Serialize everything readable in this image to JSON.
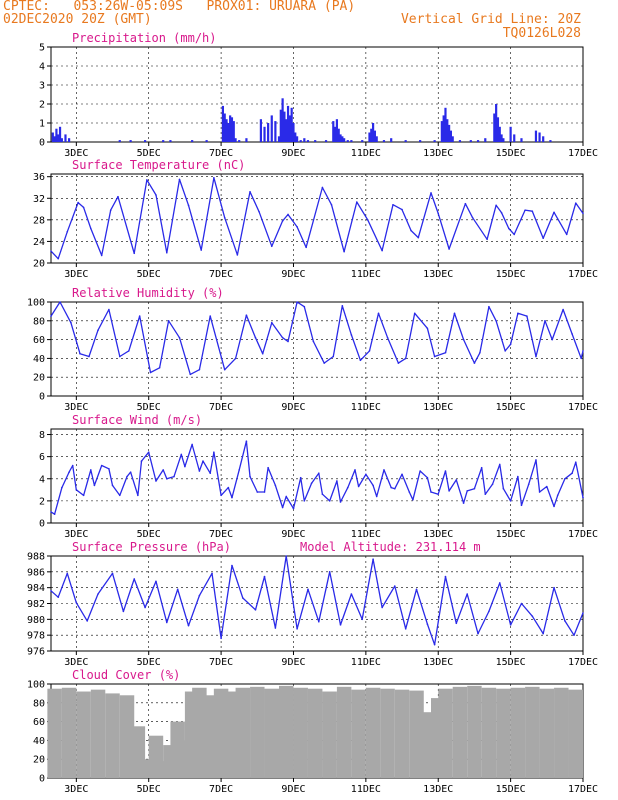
{
  "header": {
    "line1_left": "CPTEC:   053:26W-05:09S   PROX01: URUARA (PA)",
    "line2_left": "02DEC2020 20Z (GMT)",
    "line2_right": "Vertical Grid Line: 20Z",
    "line3_right": "TQ0126L028"
  },
  "colors": {
    "title": "#d8198c",
    "header": "#e8791f",
    "line": "#2a2ae8",
    "bars": "#2a2ae8",
    "cloud": "#a8a8a8"
  },
  "chart_data": [
    {
      "type": "bar",
      "title": "Precipitation (mm/h)",
      "ylim": [
        0,
        5
      ],
      "yticks": [
        0,
        1,
        2,
        3,
        4,
        5
      ],
      "x_tick_labels": [
        "3DEC",
        "5DEC",
        "7DEC",
        "9DEC",
        "11DEC",
        "13DEC",
        "15DEC",
        "17DEC"
      ],
      "x_tick_days": [
        3,
        5,
        7,
        9,
        11,
        13,
        15,
        17
      ],
      "xlim_days": [
        2.3,
        17.0
      ],
      "x_days": [
        2.35,
        2.4,
        2.45,
        2.5,
        2.55,
        2.6,
        2.7,
        2.8,
        4.2,
        4.5,
        4.9,
        5.4,
        5.6,
        6.2,
        6.6,
        7.05,
        7.1,
        7.15,
        7.2,
        7.25,
        7.3,
        7.35,
        7.4,
        7.5,
        7.7,
        8.1,
        8.2,
        8.3,
        8.4,
        8.5,
        8.6,
        8.65,
        8.7,
        8.75,
        8.8,
        8.85,
        8.9,
        8.95,
        9.0,
        9.05,
        9.1,
        9.2,
        9.3,
        9.4,
        9.6,
        9.9,
        10.1,
        10.15,
        10.2,
        10.25,
        10.3,
        10.35,
        10.4,
        10.5,
        10.6,
        10.9,
        11.1,
        11.15,
        11.2,
        11.25,
        11.3,
        11.5,
        11.7,
        12.1,
        12.5,
        12.9,
        13.1,
        13.15,
        13.2,
        13.25,
        13.3,
        13.35,
        13.4,
        13.6,
        13.9,
        14.1,
        14.3,
        14.55,
        14.6,
        14.65,
        14.7,
        14.75,
        14.8,
        15.0,
        15.1,
        15.3,
        15.7,
        15.8,
        15.9,
        16.1
      ],
      "values": [
        0.5,
        0.3,
        0.7,
        0.4,
        0.8,
        0.2,
        0.4,
        0.2,
        0.1,
        0.1,
        0.1,
        0.1,
        0.1,
        0.1,
        0.1,
        1.9,
        1.5,
        1.2,
        1.0,
        1.4,
        1.3,
        1.1,
        0.2,
        0.1,
        0.2,
        1.2,
        0.8,
        1.0,
        1.4,
        1.1,
        0.3,
        1.7,
        2.3,
        1.6,
        1.2,
        1.9,
        1.4,
        1.8,
        1.0,
        0.5,
        0.3,
        0.1,
        0.2,
        0.1,
        0.1,
        0.1,
        1.1,
        0.8,
        1.2,
        0.7,
        0.4,
        0.3,
        0.2,
        0.1,
        0.1,
        0.1,
        0.5,
        0.7,
        1.0,
        0.6,
        0.3,
        0.1,
        0.2,
        0.1,
        0.1,
        0.1,
        1.1,
        1.4,
        1.8,
        1.2,
        0.9,
        0.6,
        0.3,
        0.1,
        0.1,
        0.1,
        0.2,
        1.5,
        2.0,
        1.3,
        0.8,
        0.4,
        0.2,
        0.8,
        0.4,
        0.2,
        0.6,
        0.5,
        0.3,
        0.1
      ]
    },
    {
      "type": "line",
      "title": "Surface Temperature (nC)",
      "ylim": [
        20,
        36.5
      ],
      "yticks": [
        20,
        24,
        28,
        32,
        36
      ],
      "x_tick_labels": [
        "3DEC",
        "5DEC",
        "7DEC",
        "9DEC",
        "11DEC",
        "13DEC",
        "15DEC",
        "17DEC"
      ],
      "x_tick_days": [
        3,
        5,
        7,
        9,
        11,
        13,
        15,
        17
      ],
      "xlim_days": [
        2.3,
        17.0
      ],
      "x_days": [
        2.3,
        2.5,
        2.75,
        3.05,
        3.2,
        3.4,
        3.7,
        3.95,
        4.15,
        4.6,
        4.95,
        5.2,
        5.5,
        5.85,
        6.1,
        6.45,
        6.8,
        7.1,
        7.45,
        7.8,
        8.05,
        8.4,
        8.7,
        8.85,
        9.1,
        9.35,
        9.8,
        10.05,
        10.4,
        10.75,
        11.05,
        11.45,
        11.75,
        12.0,
        12.25,
        12.45,
        12.8,
        13.0,
        13.3,
        13.75,
        13.95,
        14.35,
        14.6,
        14.75,
        14.95,
        15.1,
        15.4,
        15.6,
        15.9,
        16.2,
        16.55,
        16.8,
        17.0
      ],
      "values": [
        22.2,
        20.8,
        25.8,
        31.2,
        30.3,
        26.4,
        21.4,
        29.8,
        32.3,
        21.8,
        35.4,
        32.6,
        21.9,
        35.5,
        30.7,
        22.4,
        35.8,
        28.4,
        21.5,
        33.2,
        29.5,
        23.1,
        27.8,
        29.0,
        26.7,
        22.9,
        34.0,
        30.8,
        22.1,
        31.3,
        28.0,
        22.3,
        30.8,
        29.9,
        26.0,
        24.7,
        33.0,
        29.2,
        22.6,
        31.0,
        28.4,
        24.4,
        30.7,
        29.3,
        26.4,
        25.3,
        29.8,
        29.6,
        24.6,
        29.4,
        25.3,
        31.1,
        29.2
      ]
    },
    {
      "type": "line",
      "title": "Relative Humidity (%)",
      "ylim": [
        0,
        100
      ],
      "yticks": [
        0,
        20,
        40,
        60,
        80,
        100
      ],
      "x_tick_labels": [
        "3DEC",
        "5DEC",
        "7DEC",
        "9DEC",
        "11DEC",
        "13DEC",
        "15DEC",
        "17DEC"
      ],
      "x_tick_days": [
        3,
        5,
        7,
        9,
        11,
        13,
        15,
        17
      ],
      "xlim_days": [
        2.3,
        17.0
      ],
      "x_days": [
        2.3,
        2.55,
        2.85,
        3.1,
        3.35,
        3.6,
        3.9,
        4.2,
        4.45,
        4.75,
        5.05,
        5.3,
        5.55,
        5.85,
        6.15,
        6.4,
        6.7,
        7.1,
        7.4,
        7.7,
        7.95,
        8.15,
        8.4,
        8.7,
        8.85,
        9.1,
        9.3,
        9.55,
        9.85,
        10.1,
        10.35,
        10.6,
        10.85,
        11.1,
        11.35,
        11.6,
        11.9,
        12.1,
        12.35,
        12.7,
        12.9,
        13.2,
        13.45,
        13.7,
        14.0,
        14.15,
        14.4,
        14.6,
        14.85,
        15.0,
        15.2,
        15.45,
        15.7,
        15.95,
        16.15,
        16.45,
        16.7,
        16.95,
        17.0
      ],
      "values": [
        85,
        100,
        78,
        45,
        42,
        70,
        92,
        42,
        48,
        85,
        25,
        30,
        80,
        62,
        23,
        28,
        85,
        28,
        40,
        86,
        62,
        45,
        78,
        62,
        58,
        100,
        95,
        58,
        35,
        42,
        96,
        65,
        38,
        48,
        88,
        62,
        35,
        40,
        88,
        72,
        42,
        46,
        88,
        60,
        35,
        46,
        95,
        80,
        48,
        55,
        88,
        85,
        42,
        80,
        60,
        92,
        66,
        40,
        48
      ]
    },
    {
      "type": "line",
      "title": "Surface Wind (m/s)",
      "ylim": [
        0,
        8.5
      ],
      "yticks": [
        0,
        2,
        4,
        6,
        8
      ],
      "x_tick_labels": [
        "3DEC",
        "5DEC",
        "7DEC",
        "9DEC",
        "11DEC",
        "13DEC",
        "15DEC",
        "17DEC"
      ],
      "x_tick_days": [
        3,
        5,
        7,
        9,
        11,
        13,
        15,
        17
      ],
      "xlim_days": [
        2.3,
        17.0
      ],
      "x_days": [
        2.3,
        2.4,
        2.6,
        2.8,
        2.9,
        3.0,
        3.2,
        3.4,
        3.5,
        3.7,
        3.9,
        4.0,
        4.2,
        4.4,
        4.5,
        4.7,
        4.8,
        5.0,
        5.2,
        5.4,
        5.5,
        5.7,
        5.9,
        6.0,
        6.2,
        6.4,
        6.5,
        6.7,
        6.8,
        7.0,
        7.2,
        7.3,
        7.5,
        7.7,
        7.8,
        8.0,
        8.2,
        8.3,
        8.5,
        8.7,
        8.8,
        9.0,
        9.2,
        9.3,
        9.5,
        9.7,
        9.8,
        10.0,
        10.2,
        10.3,
        10.5,
        10.7,
        10.8,
        11.0,
        11.2,
        11.3,
        11.5,
        11.7,
        11.8,
        12.0,
        12.2,
        12.3,
        12.5,
        12.7,
        12.8,
        13.0,
        13.2,
        13.3,
        13.5,
        13.7,
        13.8,
        14.0,
        14.2,
        14.3,
        14.5,
        14.7,
        14.8,
        15.0,
        15.2,
        15.3,
        15.5,
        15.7,
        15.8,
        16.0,
        16.2,
        16.3,
        16.5,
        16.7,
        16.8,
        17.0
      ],
      "values": [
        1.0,
        0.8,
        3.2,
        4.6,
        5.2,
        3.0,
        2.5,
        4.8,
        3.4,
        5.2,
        4.9,
        3.4,
        2.5,
        4.2,
        4.6,
        2.5,
        5.6,
        6.4,
        3.8,
        4.8,
        4.0,
        4.2,
        6.2,
        5.1,
        7.1,
        4.7,
        5.6,
        4.5,
        6.4,
        2.5,
        3.2,
        2.3,
        4.8,
        7.4,
        4.2,
        2.8,
        2.8,
        5.0,
        3.4,
        1.4,
        2.4,
        1.3,
        4.1,
        2.0,
        3.6,
        4.5,
        2.6,
        2.0,
        3.8,
        1.9,
        3.2,
        4.8,
        3.3,
        4.4,
        3.4,
        2.4,
        4.8,
        3.2,
        3.1,
        4.4,
        2.8,
        2.1,
        4.7,
        4.1,
        2.8,
        2.6,
        4.7,
        2.9,
        3.9,
        1.8,
        2.9,
        3.1,
        5.0,
        2.6,
        3.5,
        5.3,
        3.1,
        2.0,
        4.2,
        1.6,
        3.5,
        5.7,
        2.8,
        3.3,
        1.5,
        2.5,
        4.0,
        4.5,
        5.5,
        2.3
      ]
    },
    {
      "type": "line",
      "title": "Surface Pressure (hPa)",
      "annotation": "Model Altitude: 231.114 m",
      "ylim": [
        976,
        988
      ],
      "yticks": [
        976,
        978,
        980,
        982,
        984,
        986,
        988
      ],
      "x_tick_labels": [
        "3DEC",
        "5DEC",
        "7DEC",
        "9DEC",
        "11DEC",
        "13DEC",
        "15DEC",
        "17DEC"
      ],
      "x_tick_days": [
        3,
        5,
        7,
        9,
        11,
        13,
        15,
        17
      ],
      "xlim_days": [
        2.3,
        17.0
      ],
      "x_days": [
        2.3,
        2.5,
        2.75,
        3.0,
        3.3,
        3.6,
        4.0,
        4.3,
        4.6,
        4.9,
        5.2,
        5.5,
        5.8,
        6.1,
        6.4,
        6.75,
        7.0,
        7.3,
        7.6,
        7.95,
        8.2,
        8.5,
        8.8,
        9.1,
        9.4,
        9.7,
        10.0,
        10.3,
        10.6,
        10.9,
        11.2,
        11.45,
        11.8,
        12.1,
        12.4,
        12.7,
        12.9,
        13.2,
        13.5,
        13.8,
        14.1,
        14.4,
        14.7,
        15.0,
        15.3,
        15.6,
        15.9,
        16.2,
        16.5,
        16.75,
        17.0
      ],
      "values": [
        983.6,
        982.8,
        985.8,
        982.1,
        979.8,
        983.2,
        985.8,
        981.0,
        985.1,
        981.5,
        984.8,
        979.6,
        983.8,
        979.2,
        983.0,
        985.8,
        977.6,
        986.8,
        982.7,
        981.2,
        985.4,
        978.9,
        988.0,
        978.8,
        983.8,
        979.7,
        986.0,
        979.3,
        983.2,
        980.0,
        987.6,
        981.5,
        984.2,
        978.8,
        983.8,
        979.4,
        976.8,
        985.4,
        979.5,
        983.2,
        978.2,
        981.0,
        984.6,
        979.3,
        982.0,
        980.4,
        978.2,
        984.0,
        979.8,
        978.0,
        980.8
      ]
    },
    {
      "type": "bar",
      "title": "Cloud Cover (%)",
      "ylim": [
        0,
        100
      ],
      "yticks": [
        0,
        20,
        40,
        60,
        80,
        100
      ],
      "x_tick_labels": [
        "3DEC",
        "5DEC",
        "7DEC",
        "9DEC",
        "11DEC",
        "13DEC",
        "15DEC",
        "17DEC"
      ],
      "x_tick_days": [
        3,
        5,
        7,
        9,
        11,
        13,
        15,
        17
      ],
      "xlim_days": [
        2.3,
        17.0
      ],
      "x_days": [
        2.4,
        2.8,
        3.2,
        3.6,
        4.0,
        4.4,
        4.7,
        4.9,
        5.0,
        5.1,
        5.2,
        5.4,
        5.6,
        5.7,
        5.8,
        6.0,
        6.2,
        6.4,
        6.7,
        7.0,
        7.3,
        7.6,
        8.0,
        8.4,
        8.8,
        9.2,
        9.6,
        10.0,
        10.4,
        10.8,
        11.2,
        11.6,
        12.0,
        12.4,
        12.7,
        12.8,
        12.9,
        13.0,
        13.2,
        13.6,
        14.0,
        14.4,
        14.8,
        15.2,
        15.6,
        16.0,
        16.4,
        16.8
      ],
      "values": [
        95,
        96,
        92,
        94,
        90,
        88,
        55,
        20,
        2,
        10,
        45,
        18,
        35,
        25,
        60,
        40,
        92,
        96,
        88,
        95,
        92,
        96,
        97,
        95,
        98,
        96,
        95,
        92,
        97,
        94,
        96,
        95,
        94,
        93,
        70,
        15,
        60,
        85,
        95,
        97,
        98,
        96,
        95,
        96,
        97,
        95,
        96,
        94
      ]
    }
  ]
}
